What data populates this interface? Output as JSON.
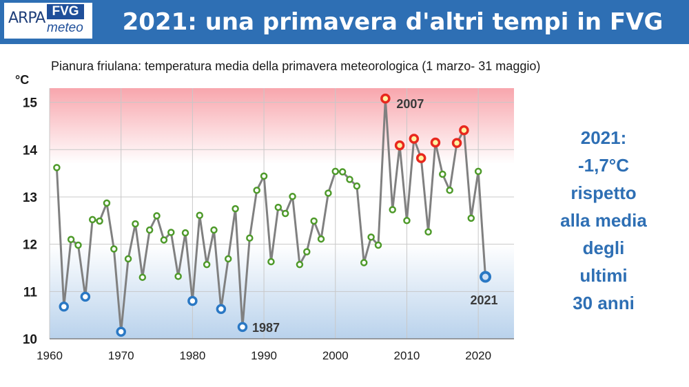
{
  "header": {
    "title": "2021: una primavera d'altri tempi in FVG",
    "logo": {
      "arpa": "ARPA",
      "fvg": "FVG",
      "meteo": "meteo"
    }
  },
  "chart_data": {
    "type": "line",
    "title": "",
    "subtitle": "Pianura friulana: temperatura media della primavera meteorologica (1 marzo- 31 maggio)",
    "ylabel": "°C",
    "xlabel": "",
    "xlim": [
      1960,
      2025
    ],
    "ylim": [
      10,
      15.3
    ],
    "xticks": [
      1960,
      1970,
      1980,
      1990,
      2000,
      2010,
      2020
    ],
    "yticks": [
      10,
      11,
      12,
      13,
      14,
      15
    ],
    "grid": true,
    "colors": {
      "line": "#808080",
      "normal": "#4e9a2a",
      "warm": "#e8281e",
      "cold": "#2a78c4",
      "warm_band": "#f8a6ad",
      "cold_band": "#b9d2ec",
      "label": "#3a3a3a"
    },
    "series": [
      {
        "x": [
          1961,
          1962,
          1963,
          1964,
          1965,
          1966,
          1967,
          1968,
          1969,
          1970,
          1971,
          1972,
          1973,
          1974,
          1975,
          1976,
          1977,
          1978,
          1979,
          1980,
          1981,
          1982,
          1983,
          1984,
          1985,
          1986,
          1987,
          1988,
          1989,
          1990,
          1991,
          1992,
          1993,
          1994,
          1995,
          1996,
          1997,
          1998,
          1999,
          2000,
          2001,
          2002,
          2003,
          2004,
          2005,
          2006,
          2007,
          2008,
          2009,
          2010,
          2011,
          2012,
          2013,
          2014,
          2015,
          2016,
          2017,
          2018,
          2019,
          2020,
          2021
        ],
        "values": [
          13.62,
          10.68,
          12.1,
          11.98,
          10.89,
          12.52,
          12.49,
          12.87,
          11.9,
          10.15,
          11.69,
          12.43,
          11.3,
          12.3,
          12.6,
          12.09,
          12.25,
          11.32,
          12.24,
          10.8,
          12.61,
          11.57,
          12.3,
          10.63,
          11.69,
          12.75,
          10.25,
          12.13,
          13.14,
          13.44,
          11.63,
          12.78,
          12.65,
          13.01,
          11.57,
          11.84,
          12.49,
          12.11,
          13.08,
          13.54,
          13.53,
          13.37,
          13.23,
          11.61,
          12.15,
          11.98,
          15.08,
          12.73,
          14.09,
          12.5,
          14.23,
          13.82,
          12.26,
          14.15,
          13.48,
          13.14,
          14.14,
          14.41,
          12.55,
          13.54,
          11.31
        ],
        "categories": [
          "normal",
          "cold",
          "normal",
          "normal",
          "cold",
          "normal",
          "normal",
          "normal",
          "normal",
          "cold",
          "normal",
          "normal",
          "normal",
          "normal",
          "normal",
          "normal",
          "normal",
          "normal",
          "normal",
          "cold",
          "normal",
          "normal",
          "normal",
          "cold",
          "normal",
          "normal",
          "cold",
          "normal",
          "normal",
          "normal",
          "normal",
          "normal",
          "normal",
          "normal",
          "normal",
          "normal",
          "normal",
          "normal",
          "normal",
          "normal",
          "normal",
          "normal",
          "normal",
          "normal",
          "normal",
          "normal",
          "warm",
          "normal",
          "warm",
          "normal",
          "warm",
          "warm",
          "normal",
          "warm",
          "normal",
          "normal",
          "warm",
          "warm",
          "normal",
          "normal",
          "cold"
        ]
      }
    ],
    "annotations": [
      {
        "x": 2007,
        "y": 15.08,
        "text": "2007"
      },
      {
        "x": 1987,
        "y": 10.25,
        "text": "1987"
      },
      {
        "x": 2021,
        "y": 11.31,
        "text": "2021"
      }
    ]
  },
  "side_note": [
    "2021:",
    "-1,7°C",
    "rispetto",
    "alla media",
    "degli",
    "ultimi",
    "30 anni"
  ]
}
